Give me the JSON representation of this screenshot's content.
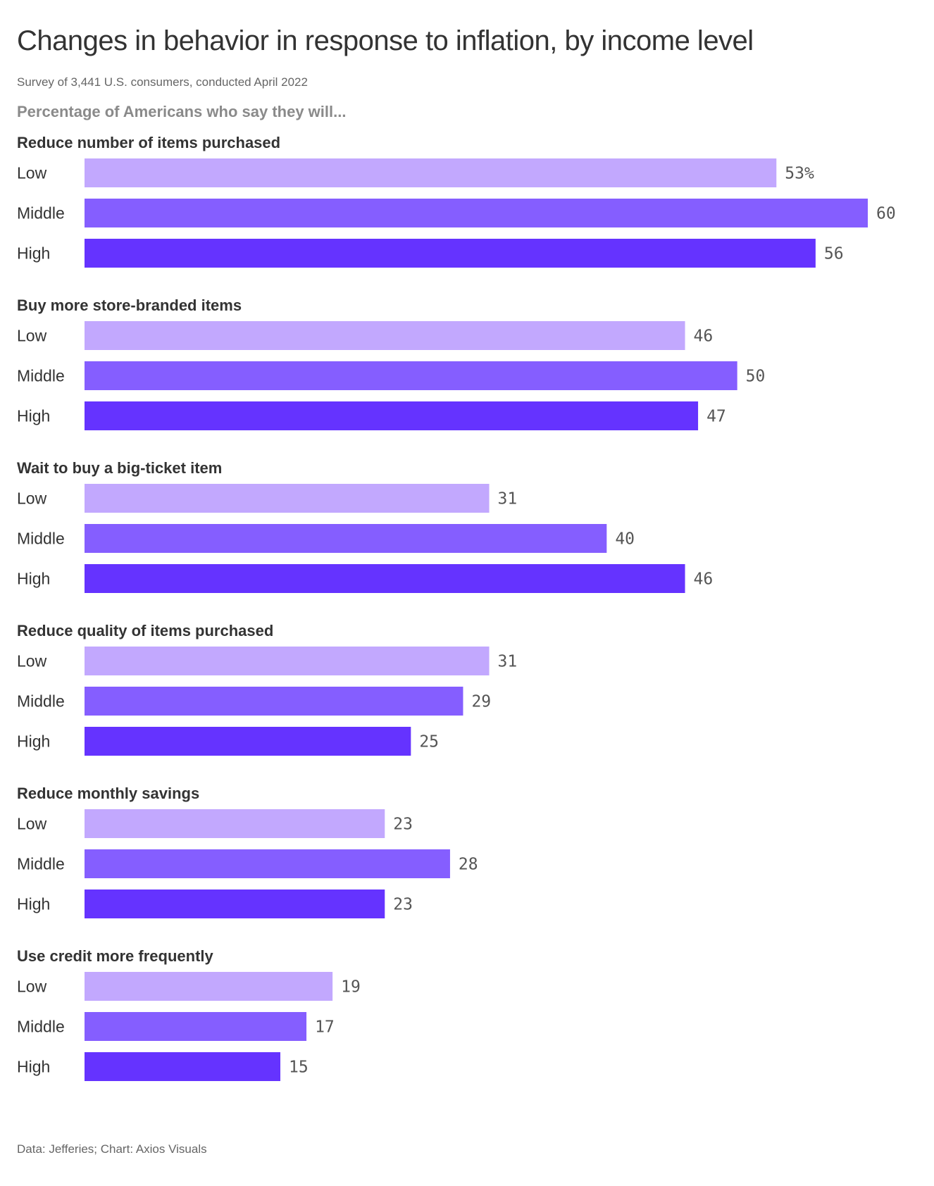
{
  "header": {
    "title": "Changes in behavior in response to inflation, by income level",
    "subtitle": "Survey of 3,441 U.S. consumers, conducted April 2022",
    "lead": "Percentage of Americans who say they will..."
  },
  "footer": {
    "source": "Data: Jefferies; Chart: Axios Visuals"
  },
  "chart_data": {
    "type": "bar",
    "orientation": "horizontal",
    "value_suffix_first": "%",
    "xlim": [
      0,
      60
    ],
    "grid": false,
    "legend": "none",
    "row_labels": [
      "Low",
      "Middle",
      "High"
    ],
    "colors": {
      "Low": "#c2a8fe",
      "Middle": "#855eff",
      "High": "#6533ff"
    },
    "groups": [
      {
        "title": "Reduce number of items purchased",
        "values": [
          53,
          60,
          56
        ]
      },
      {
        "title": "Buy more store-branded items",
        "values": [
          46,
          50,
          47
        ]
      },
      {
        "title": "Wait to buy a big-ticket item",
        "values": [
          31,
          40,
          46
        ]
      },
      {
        "title": "Reduce quality of items purchased",
        "values": [
          31,
          29,
          25
        ]
      },
      {
        "title": "Reduce monthly savings",
        "values": [
          23,
          28,
          23
        ]
      },
      {
        "title": "Use credit more frequently",
        "values": [
          19,
          17,
          15
        ]
      }
    ]
  }
}
